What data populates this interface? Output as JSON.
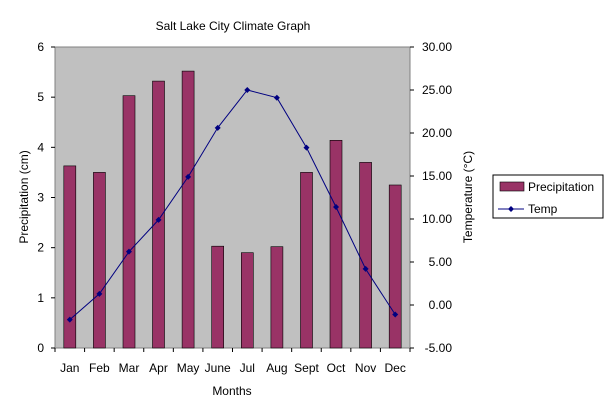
{
  "chart_data": {
    "type": "bar",
    "title": "Salt Lake City Climate Graph",
    "xlabel": "Months",
    "ylabel": "Precipitation (cm)",
    "y2label": "Temperature (°C)",
    "categories": [
      "Jan",
      "Feb",
      "Mar",
      "Apr",
      "May",
      "June",
      "Jul",
      "Aug",
      "Sept",
      "Oct",
      "Nov",
      "Dec"
    ],
    "ylim": [
      0,
      6
    ],
    "yticks": [
      "0",
      "1",
      "2",
      "3",
      "4",
      "5",
      "6"
    ],
    "y2lim": [
      -5,
      30
    ],
    "y2ticks": [
      "-5.00",
      "0.00",
      "5.00",
      "10.00",
      "15.00",
      "20.00",
      "25.00",
      "30.00"
    ],
    "series": [
      {
        "name": "Precipitation",
        "kind": "bar",
        "axis": "left",
        "color": "#993366",
        "values": [
          3.63,
          3.5,
          5.03,
          5.32,
          5.52,
          2.03,
          1.9,
          2.02,
          3.5,
          4.14,
          3.7,
          3.25
        ]
      },
      {
        "name": "Temp",
        "kind": "line",
        "axis": "right",
        "color": "#000080",
        "values": [
          -1.7,
          1.3,
          6.2,
          9.9,
          14.9,
          20.6,
          25.0,
          24.1,
          18.3,
          11.4,
          4.2,
          -1.1
        ]
      }
    ],
    "plot_background": "#c0c0c0",
    "grid": false,
    "legend_position": "right"
  }
}
